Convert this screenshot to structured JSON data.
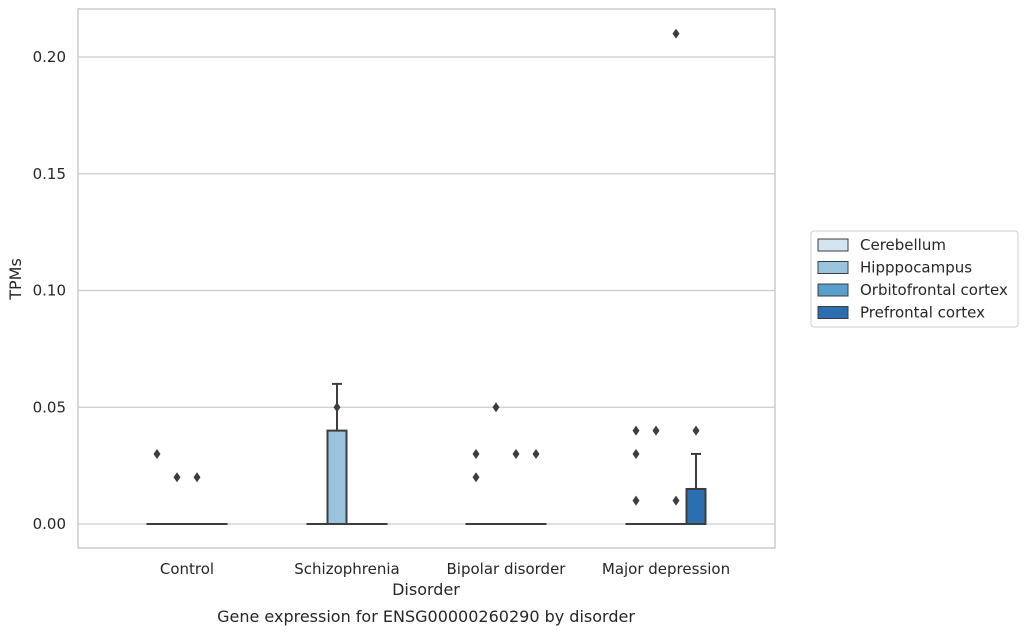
{
  "caption": "Gene expression for ENSG00000260290 by disorder",
  "chart_data": {
    "type": "boxplot",
    "xlabel": "Disorder",
    "ylabel": "TPMs",
    "ylim": [
      -0.01,
      0.221
    ],
    "yticks": [
      "0.00",
      "0.05",
      "0.10",
      "0.15",
      "0.20"
    ],
    "grid": "horizontal",
    "legend_position": "right",
    "categories": [
      "Control",
      "Schizophrenia",
      "Bipolar disorder",
      "Major depression"
    ],
    "series": [
      {
        "name": "Cerebellum",
        "color": "#d3e4f3",
        "boxes": [
          {
            "q1": 0,
            "median": 0,
            "q3": 0,
            "whisker_low": 0,
            "whisker_high": 0,
            "outliers": [
              0.03
            ]
          },
          {
            "q1": 0,
            "median": 0,
            "q3": 0,
            "whisker_low": 0,
            "whisker_high": 0,
            "outliers": []
          },
          {
            "q1": 0,
            "median": 0,
            "q3": 0,
            "whisker_low": 0,
            "whisker_high": 0,
            "outliers": [
              0.02,
              0.03
            ]
          },
          {
            "q1": 0,
            "median": 0,
            "q3": 0,
            "whisker_low": 0,
            "whisker_high": 0,
            "outliers": [
              0.01,
              0.03,
              0.04
            ]
          }
        ]
      },
      {
        "name": "Hipppocampus",
        "color": "#9ac3de",
        "boxes": [
          {
            "q1": 0,
            "median": 0,
            "q3": 0,
            "whisker_low": 0,
            "whisker_high": 0,
            "outliers": [
              0.02
            ]
          },
          {
            "q1": 0,
            "median": 0,
            "q3": 0.04,
            "whisker_low": 0,
            "whisker_high": 0.06,
            "outliers": [
              0.05
            ]
          },
          {
            "q1": 0,
            "median": 0,
            "q3": 0,
            "whisker_low": 0,
            "whisker_high": 0,
            "outliers": [
              0.05
            ]
          },
          {
            "q1": 0,
            "median": 0,
            "q3": 0,
            "whisker_low": 0,
            "whisker_high": 0,
            "outliers": [
              0.04
            ]
          }
        ]
      },
      {
        "name": "Orbitofrontal cortex",
        "color": "#5a9fcc",
        "boxes": [
          {
            "q1": 0,
            "median": 0,
            "q3": 0,
            "whisker_low": 0,
            "whisker_high": 0,
            "outliers": [
              0.02
            ]
          },
          {
            "q1": 0,
            "median": 0,
            "q3": 0,
            "whisker_low": 0,
            "whisker_high": 0,
            "outliers": []
          },
          {
            "q1": 0,
            "median": 0,
            "q3": 0,
            "whisker_low": 0,
            "whisker_high": 0,
            "outliers": [
              0.03
            ]
          },
          {
            "q1": 0,
            "median": 0,
            "q3": 0,
            "whisker_low": 0,
            "whisker_high": 0,
            "outliers": [
              0.01,
              0.21
            ]
          }
        ]
      },
      {
        "name": "Prefrontal cortex",
        "color": "#2c6fb1",
        "boxes": [
          {
            "q1": 0,
            "median": 0,
            "q3": 0,
            "whisker_low": 0,
            "whisker_high": 0,
            "outliers": []
          },
          {
            "q1": 0,
            "median": 0,
            "q3": 0,
            "whisker_low": 0,
            "whisker_high": 0,
            "outliers": []
          },
          {
            "q1": 0,
            "median": 0,
            "q3": 0,
            "whisker_low": 0,
            "whisker_high": 0,
            "outliers": [
              0.03
            ]
          },
          {
            "q1": 0,
            "median": 0,
            "q3": 0.015,
            "whisker_low": 0,
            "whisker_high": 0.03,
            "outliers": [
              0.04
            ]
          }
        ]
      }
    ]
  }
}
